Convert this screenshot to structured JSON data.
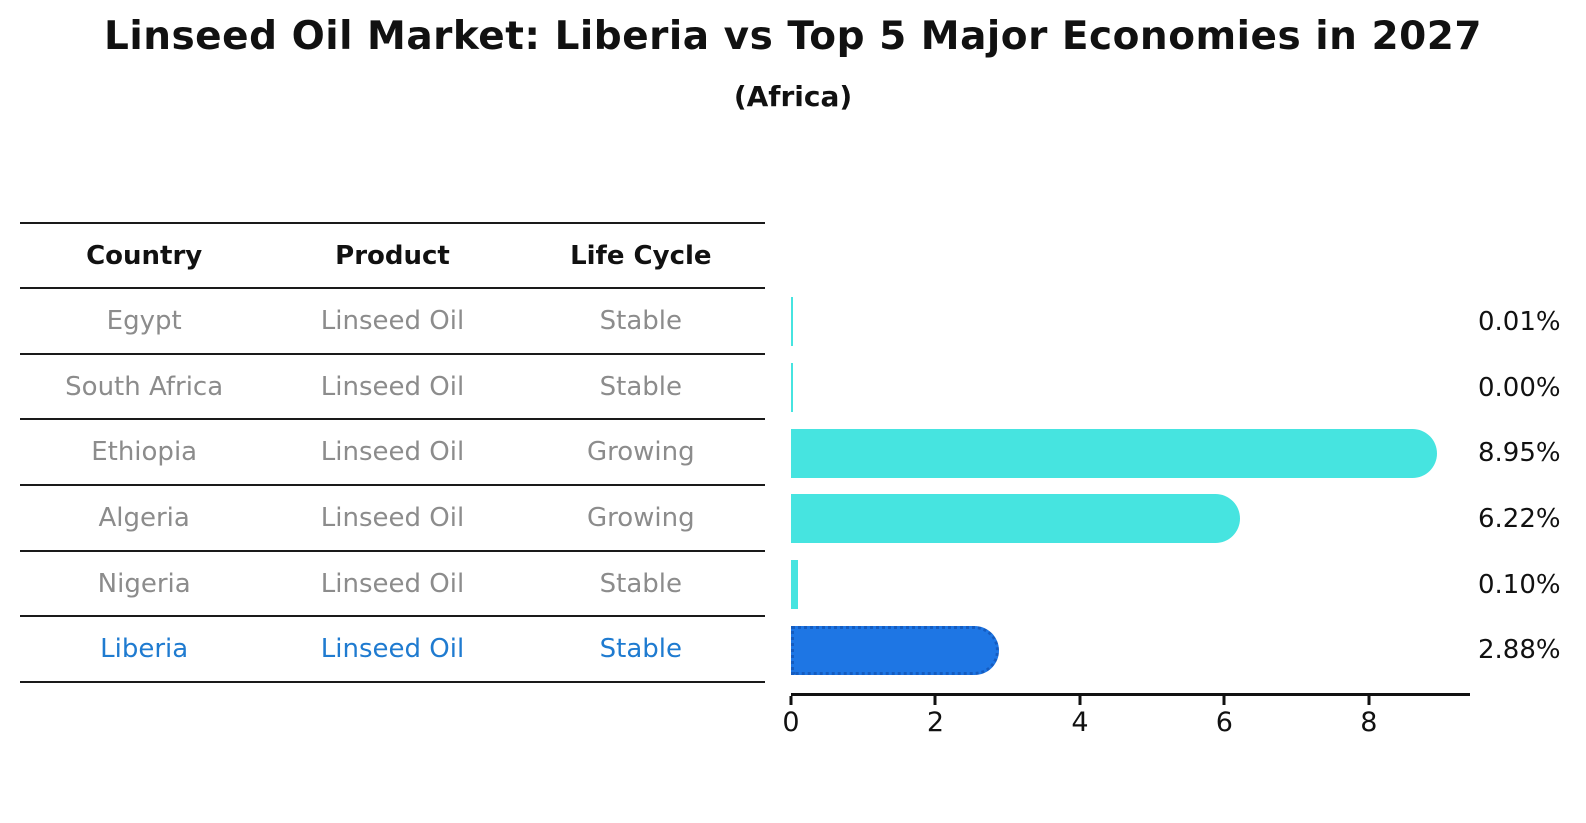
{
  "title": "Linseed Oil Market: Liberia vs Top 5 Major Economies in 2027",
  "subtitle": "(Africa)",
  "table": {
    "headers": [
      "Country",
      "Product",
      "Life Cycle"
    ],
    "rows": [
      {
        "country": "Egypt",
        "product": "Linseed Oil",
        "life_cycle": "Stable",
        "highlight": false
      },
      {
        "country": "South Africa",
        "product": "Linseed Oil",
        "life_cycle": "Stable",
        "highlight": false
      },
      {
        "country": "Ethiopia",
        "product": "Linseed Oil",
        "life_cycle": "Growing",
        "highlight": false
      },
      {
        "country": "Algeria",
        "product": "Linseed Oil",
        "life_cycle": "Growing",
        "highlight": false
      },
      {
        "country": "Nigeria",
        "product": "Linseed Oil",
        "life_cycle": "Stable",
        "highlight": false
      },
      {
        "country": "Liberia",
        "product": "Linseed Oil",
        "life_cycle": "Stable",
        "highlight": true
      }
    ]
  },
  "chart_data": {
    "type": "bar",
    "orientation": "horizontal",
    "title": "Linseed Oil Market: Liberia vs Top 5 Major Economies in 2027",
    "subtitle": "(Africa)",
    "categories": [
      "Egypt",
      "South Africa",
      "Ethiopia",
      "Algeria",
      "Nigeria",
      "Liberia"
    ],
    "values": [
      0.01,
      0.0,
      8.95,
      6.22,
      0.1,
      2.88
    ],
    "value_labels": [
      "0.01%",
      "0.00%",
      "8.95%",
      "6.22%",
      "0.10%",
      "2.88%"
    ],
    "xticks": [
      0,
      2,
      4,
      6,
      8
    ],
    "xlim": [
      0,
      9.4
    ],
    "grid": false,
    "legend": false,
    "highlight_index": 5,
    "colors": {
      "bar": "#46e4e0",
      "highlight_bar": "#1e76e4",
      "highlight_bar_edge": "#155cc0",
      "highlight_text": "#1f7bd0",
      "row_text": "#8c8c8c",
      "axis_text": "#111111"
    }
  }
}
